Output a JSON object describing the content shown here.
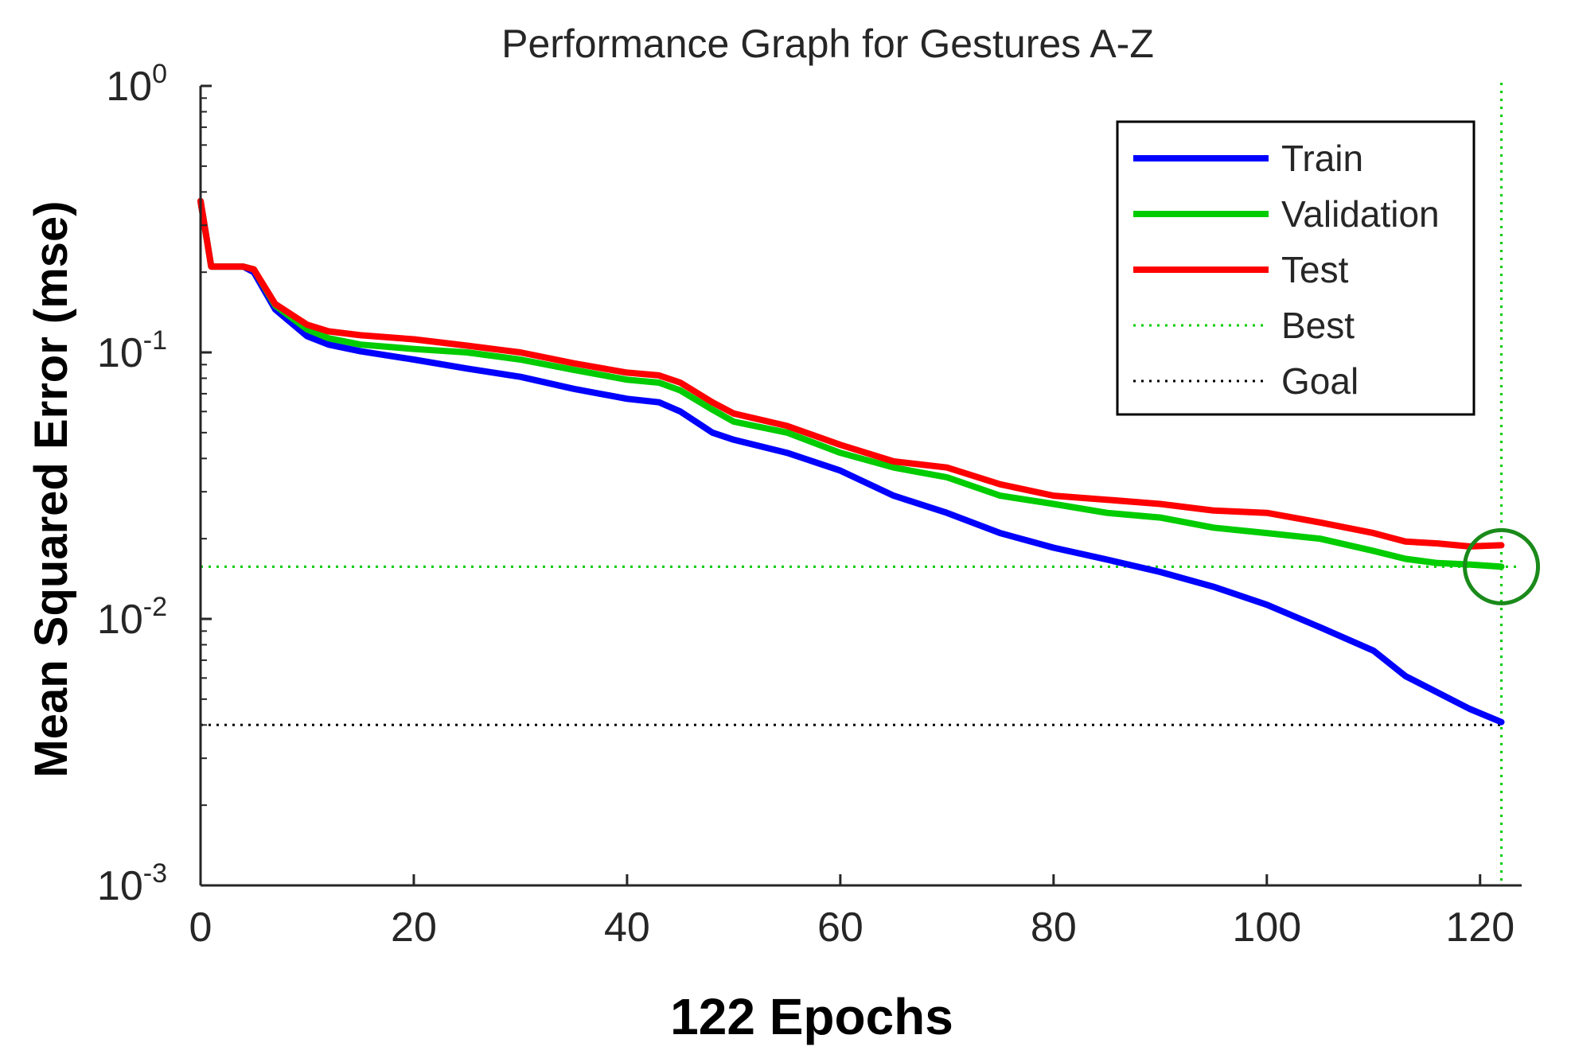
{
  "chart_data": {
    "type": "line",
    "title": "Performance Graph for Gestures A-Z",
    "xlabel": "122 Epochs",
    "ylabel": "Mean Squared Error  (mse)",
    "yscale": "log",
    "xlim": [
      0,
      122
    ],
    "ylim": [
      0.001,
      1
    ],
    "xticks": [
      0,
      20,
      40,
      60,
      80,
      100,
      120
    ],
    "yticks": [
      {
        "value": 1,
        "base": "10",
        "exp": "0"
      },
      {
        "value": 0.1,
        "base": "10",
        "exp": "-1"
      },
      {
        "value": 0.01,
        "base": "10",
        "exp": "-2"
      },
      {
        "value": 0.001,
        "base": "10",
        "exp": "-3"
      }
    ],
    "legend_position": "top-right",
    "series": [
      {
        "name": "Train",
        "color": "#0000ff",
        "style": "solid",
        "points": [
          [
            0,
            0.37
          ],
          [
            1,
            0.21
          ],
          [
            4,
            0.21
          ],
          [
            5,
            0.2
          ],
          [
            7,
            0.145
          ],
          [
            10,
            0.115
          ],
          [
            12,
            0.107
          ],
          [
            15,
            0.101
          ],
          [
            20,
            0.094
          ],
          [
            25,
            0.087
          ],
          [
            30,
            0.081
          ],
          [
            35,
            0.073
          ],
          [
            40,
            0.067
          ],
          [
            43,
            0.065
          ],
          [
            45,
            0.06
          ],
          [
            48,
            0.05
          ],
          [
            50,
            0.047
          ],
          [
            55,
            0.042
          ],
          [
            60,
            0.036
          ],
          [
            65,
            0.029
          ],
          [
            70,
            0.025
          ],
          [
            75,
            0.021
          ],
          [
            80,
            0.0185
          ],
          [
            85,
            0.0167
          ],
          [
            90,
            0.015
          ],
          [
            95,
            0.0132
          ],
          [
            100,
            0.0113
          ],
          [
            105,
            0.0093
          ],
          [
            110,
            0.0076
          ],
          [
            113,
            0.0061
          ],
          [
            116,
            0.0053
          ],
          [
            119,
            0.0046
          ],
          [
            122,
            0.0041
          ]
        ]
      },
      {
        "name": "Validation",
        "color": "#00cc00",
        "style": "solid",
        "points": [
          [
            0,
            0.37
          ],
          [
            1,
            0.21
          ],
          [
            4,
            0.21
          ],
          [
            5,
            0.205
          ],
          [
            7,
            0.15
          ],
          [
            10,
            0.122
          ],
          [
            12,
            0.113
          ],
          [
            15,
            0.107
          ],
          [
            20,
            0.103
          ],
          [
            25,
            0.1
          ],
          [
            30,
            0.094
          ],
          [
            35,
            0.086
          ],
          [
            40,
            0.079
          ],
          [
            43,
            0.077
          ],
          [
            45,
            0.072
          ],
          [
            48,
            0.061
          ],
          [
            50,
            0.055
          ],
          [
            55,
            0.05
          ],
          [
            60,
            0.042
          ],
          [
            65,
            0.037
          ],
          [
            70,
            0.034
          ],
          [
            75,
            0.029
          ],
          [
            80,
            0.027
          ],
          [
            85,
            0.025
          ],
          [
            90,
            0.024
          ],
          [
            95,
            0.022
          ],
          [
            100,
            0.021
          ],
          [
            105,
            0.02
          ],
          [
            110,
            0.018
          ],
          [
            113,
            0.0168
          ],
          [
            116,
            0.0162
          ],
          [
            119,
            0.016
          ],
          [
            122,
            0.0157
          ]
        ]
      },
      {
        "name": "Test",
        "color": "#ff0000",
        "style": "solid",
        "points": [
          [
            0,
            0.37
          ],
          [
            1,
            0.21
          ],
          [
            4,
            0.21
          ],
          [
            5,
            0.205
          ],
          [
            7,
            0.152
          ],
          [
            10,
            0.127
          ],
          [
            12,
            0.12
          ],
          [
            15,
            0.116
          ],
          [
            20,
            0.112
          ],
          [
            25,
            0.106
          ],
          [
            30,
            0.1
          ],
          [
            35,
            0.091
          ],
          [
            40,
            0.084
          ],
          [
            43,
            0.082
          ],
          [
            45,
            0.077
          ],
          [
            48,
            0.065
          ],
          [
            50,
            0.059
          ],
          [
            55,
            0.053
          ],
          [
            60,
            0.045
          ],
          [
            65,
            0.039
          ],
          [
            70,
            0.037
          ],
          [
            75,
            0.032
          ],
          [
            80,
            0.029
          ],
          [
            85,
            0.028
          ],
          [
            90,
            0.027
          ],
          [
            95,
            0.0255
          ],
          [
            100,
            0.025
          ],
          [
            105,
            0.023
          ],
          [
            110,
            0.021
          ],
          [
            113,
            0.0195
          ],
          [
            116,
            0.0192
          ],
          [
            119,
            0.0187
          ],
          [
            122,
            0.0189
          ]
        ]
      },
      {
        "name": "Best",
        "color": "#00cc00",
        "style": "dotted"
      },
      {
        "name": "Goal",
        "color": "#000000",
        "style": "dotted"
      }
    ],
    "best_epoch": 122,
    "best_value": 0.0157,
    "goal_value": 0.004
  }
}
